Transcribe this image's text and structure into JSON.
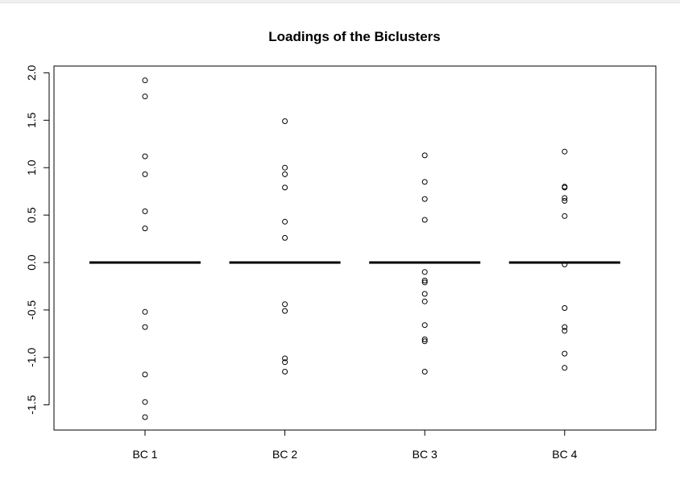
{
  "chart_data": {
    "type": "scatter",
    "title": "Loadings of the Biclusters",
    "xlabel": "",
    "ylabel": "",
    "categories": [
      "BC 1",
      "BC 2",
      "BC 3",
      "BC 4"
    ],
    "ylim": [
      -1.75,
      2.0
    ],
    "yticks": [
      "-1.5",
      "-1.0",
      "-0.5",
      "0.0",
      "0.5",
      "1.0",
      "1.5",
      "2.0"
    ],
    "grid": false,
    "legend": "none",
    "baseline_value": 0.0,
    "series": [
      {
        "values": [
          1.92,
          1.75,
          1.12,
          0.93,
          0.54,
          0.36,
          -0.52,
          -0.68,
          -1.18,
          -1.47,
          -1.63
        ]
      },
      {
        "values": [
          1.49,
          1.0,
          0.93,
          0.79,
          0.43,
          0.26,
          -0.44,
          -0.51,
          -1.01,
          -1.05,
          -1.15
        ]
      },
      {
        "values": [
          1.13,
          0.85,
          0.67,
          0.45,
          -0.1,
          -0.19,
          -0.21,
          -0.33,
          -0.41,
          -0.66,
          -0.81,
          -0.83,
          -1.15
        ]
      },
      {
        "values": [
          1.17,
          0.8,
          0.79,
          0.68,
          0.65,
          0.49,
          -0.02,
          -0.48,
          -0.68,
          -0.72,
          -0.96,
          -1.11
        ]
      }
    ],
    "colors": {
      "points": "#000000",
      "axis": "#000000",
      "background": "#ffffff"
    }
  }
}
